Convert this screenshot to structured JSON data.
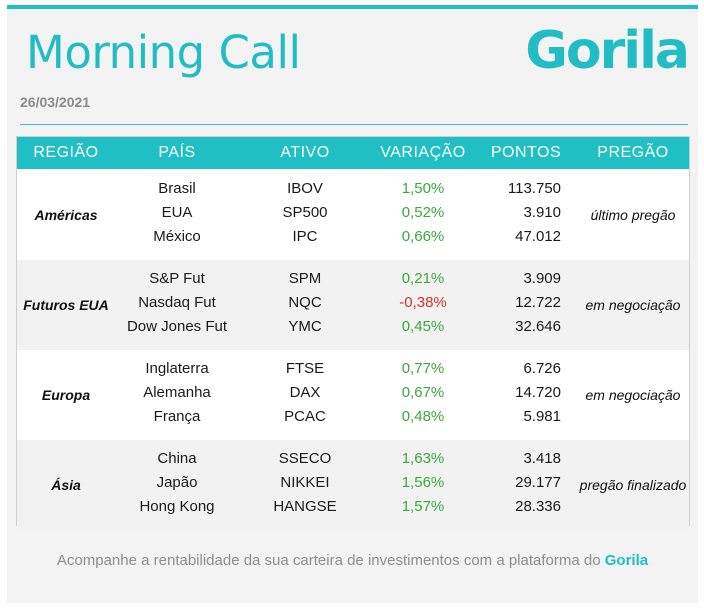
{
  "header": {
    "title": "Morning Call",
    "logo_text": "Gorila",
    "date": "26/03/2021"
  },
  "colors": {
    "accent": "#1fbfc4",
    "positive": "#3aa83a",
    "negative": "#d93025"
  },
  "table": {
    "columns": [
      "REGIÃO",
      "PAÍS",
      "ATIVO",
      "VARIAÇÃO",
      "PONTOS",
      "PREGÃO"
    ],
    "groups": [
      {
        "region": "Américas",
        "pregao": "último pregão",
        "rows": [
          {
            "pais": "Brasil",
            "ativo": "IBOV",
            "variacao": "1,50%",
            "pontos": "113.750"
          },
          {
            "pais": "EUA",
            "ativo": "SP500",
            "variacao": "0,52%",
            "pontos": "3.910"
          },
          {
            "pais": "México",
            "ativo": "IPC",
            "variacao": "0,66%",
            "pontos": "47.012"
          }
        ]
      },
      {
        "region": "Futuros EUA",
        "pregao": "em negociação",
        "rows": [
          {
            "pais": "S&P Fut",
            "ativo": "SPM",
            "variacao": "0,21%",
            "pontos": "3.909"
          },
          {
            "pais": "Nasdaq Fut",
            "ativo": "NQC",
            "variacao": "-0,38%",
            "pontos": "12.722"
          },
          {
            "pais": "Dow Jones Fut",
            "ativo": "YMC",
            "variacao": "0,45%",
            "pontos": "32.646"
          }
        ]
      },
      {
        "region": "Europa",
        "pregao": "em negociação",
        "rows": [
          {
            "pais": "Inglaterra",
            "ativo": "FTSE",
            "variacao": "0,77%",
            "pontos": "6.726"
          },
          {
            "pais": "Alemanha",
            "ativo": "DAX",
            "variacao": "0,67%",
            "pontos": "14.720"
          },
          {
            "pais": "França",
            "ativo": "PCAC",
            "variacao": "0,48%",
            "pontos": "5.981"
          }
        ]
      },
      {
        "region": "Ásia",
        "pregao": "pregão finalizado",
        "rows": [
          {
            "pais": "China",
            "ativo": "SSECO",
            "variacao": "1,63%",
            "pontos": "3.418"
          },
          {
            "pais": "Japão",
            "ativo": "NIKKEI",
            "variacao": "1,56%",
            "pontos": "29.177"
          },
          {
            "pais": "Hong Kong",
            "ativo": "HANGSE",
            "variacao": "1,57%",
            "pontos": "28.336"
          }
        ]
      }
    ]
  },
  "footer": {
    "text": "Acompanhe a rentabilidade da sua carteira de investimentos com a plataforma do",
    "brand": "Gorila"
  }
}
